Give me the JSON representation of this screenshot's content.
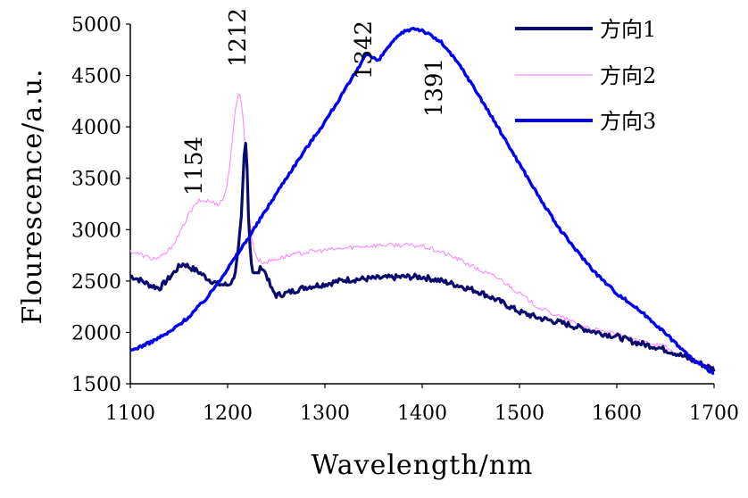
{
  "chart_data": {
    "type": "line",
    "xlabel": "Wavelength/nm",
    "ylabel": "Flourescence/a.u.",
    "xlim": [
      1100,
      1700
    ],
    "ylim": [
      1500,
      5000
    ],
    "xticks": [
      1100,
      1200,
      1300,
      1400,
      1500,
      1600,
      1700
    ],
    "yticks": [
      1500,
      2000,
      2500,
      3000,
      3500,
      4000,
      4500,
      5000
    ],
    "legend_position": "top-right",
    "series": [
      {
        "name": "方向1",
        "color": "#0b0b6e",
        "noise": 28,
        "x": [
          1100,
          1110,
          1120,
          1130,
          1140,
          1150,
          1155,
          1160,
          1170,
          1180,
          1190,
          1200,
          1205,
          1208,
          1211,
          1214,
          1216,
          1218,
          1220,
          1222,
          1224,
          1226,
          1230,
          1235,
          1240,
          1245,
          1250,
          1260,
          1280,
          1300,
          1320,
          1340,
          1360,
          1380,
          1400,
          1420,
          1440,
          1460,
          1480,
          1500,
          1520,
          1540,
          1560,
          1580,
          1600,
          1620,
          1640,
          1660,
          1680,
          1700
        ],
        "y": [
          2550,
          2510,
          2460,
          2430,
          2530,
          2640,
          2670,
          2640,
          2590,
          2520,
          2470,
          2460,
          2500,
          2600,
          2800,
          3100,
          3500,
          3910,
          3600,
          3000,
          2700,
          2600,
          2560,
          2640,
          2560,
          2420,
          2360,
          2380,
          2440,
          2470,
          2510,
          2520,
          2530,
          2540,
          2540,
          2500,
          2450,
          2390,
          2300,
          2200,
          2140,
          2100,
          2050,
          2000,
          1960,
          1900,
          1860,
          1800,
          1720,
          1640
        ]
      },
      {
        "name": "方向2",
        "color": "#ff88ff",
        "noise": 22,
        "x": [
          1100,
          1110,
          1120,
          1130,
          1140,
          1150,
          1160,
          1170,
          1180,
          1190,
          1195,
          1200,
          1204,
          1208,
          1212,
          1215,
          1218,
          1221,
          1224,
          1228,
          1232,
          1238,
          1245,
          1260,
          1280,
          1300,
          1320,
          1340,
          1360,
          1380,
          1400,
          1420,
          1440,
          1460,
          1480,
          1500,
          1520,
          1540,
          1560,
          1580,
          1600,
          1620,
          1640,
          1650,
          1660,
          1680,
          1700
        ],
        "y": [
          2790,
          2760,
          2720,
          2720,
          2800,
          2950,
          3150,
          3280,
          3280,
          3250,
          3290,
          3450,
          3800,
          4150,
          4360,
          4200,
          3800,
          3300,
          2950,
          2780,
          2700,
          2680,
          2700,
          2740,
          2780,
          2800,
          2820,
          2840,
          2850,
          2850,
          2840,
          2780,
          2700,
          2600,
          2520,
          2380,
          2240,
          2160,
          2080,
          2020,
          1980,
          1920,
          1890,
          1860,
          1800,
          1720,
          1660
        ]
      },
      {
        "name": "方向3",
        "color": "#0000ee",
        "noise": 14,
        "x": [
          1100,
          1120,
          1140,
          1160,
          1180,
          1200,
          1220,
          1240,
          1260,
          1280,
          1300,
          1320,
          1335,
          1342,
          1348,
          1355,
          1365,
          1380,
          1391,
          1400,
          1420,
          1440,
          1460,
          1480,
          1500,
          1520,
          1540,
          1560,
          1580,
          1600,
          1620,
          1640,
          1660,
          1680,
          1700
        ],
        "y": [
          1820,
          1900,
          2000,
          2150,
          2350,
          2620,
          2900,
          3200,
          3500,
          3780,
          4050,
          4350,
          4580,
          4720,
          4680,
          4640,
          4780,
          4920,
          4960,
          4940,
          4820,
          4580,
          4280,
          3960,
          3640,
          3320,
          3020,
          2780,
          2560,
          2380,
          2240,
          2080,
          1900,
          1720,
          1600
        ]
      }
    ],
    "annotations": [
      "1154",
      "1212",
      "1342",
      "1391"
    ]
  }
}
